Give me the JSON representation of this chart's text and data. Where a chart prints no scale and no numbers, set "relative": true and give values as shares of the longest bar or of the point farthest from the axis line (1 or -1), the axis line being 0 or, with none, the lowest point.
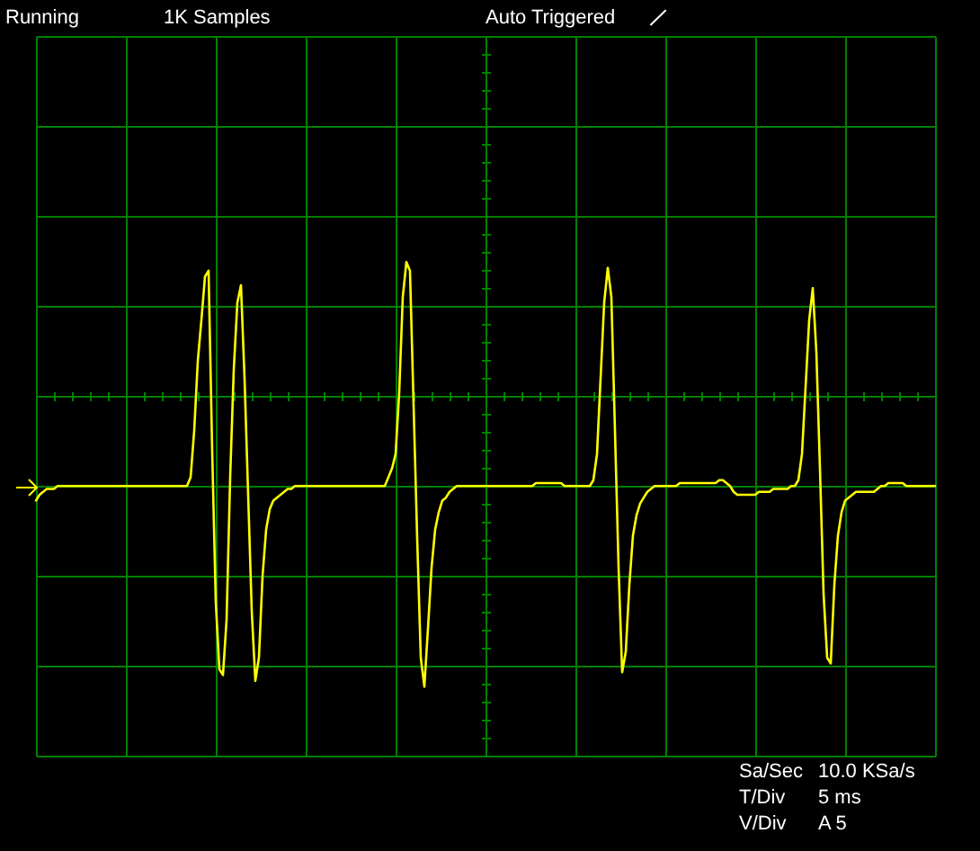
{
  "chart_data": {
    "type": "line",
    "relative": true,
    "grid": true,
    "color": "#ffff00",
    "annotations": [
      "Running",
      "1K Samples",
      "Auto Triggered",
      "Sa/Sec",
      "10.0 KSa/s",
      "T/Div",
      "5 ms",
      "V/Div",
      "A 5"
    ],
    "categories": [
      null,
      null,
      null,
      null,
      null,
      null,
      null,
      null,
      null,
      null,
      null,
      null,
      null,
      null,
      null,
      null,
      null,
      null,
      null,
      null,
      null,
      null,
      null,
      null,
      null,
      null,
      null,
      null,
      null,
      null,
      null,
      null,
      null,
      null,
      null,
      null,
      null,
      null,
      null,
      null,
      null,
      null,
      null,
      null,
      null,
      null,
      null,
      null,
      null,
      null,
      null,
      null,
      null,
      null,
      null,
      null,
      null,
      null,
      null,
      null,
      null,
      null,
      null,
      null,
      null,
      null,
      null,
      null,
      null,
      null,
      null,
      null,
      null,
      null,
      null,
      null,
      null,
      null,
      null,
      null,
      null,
      null,
      null,
      null,
      null,
      null,
      null,
      null,
      null,
      null,
      null,
      null,
      null,
      null,
      null,
      null,
      null,
      null,
      null,
      null,
      null,
      null,
      null,
      null,
      null,
      null,
      null,
      null,
      null,
      null,
      null,
      null,
      null,
      null,
      null,
      null,
      null,
      null,
      null,
      null,
      null,
      null,
      null,
      null,
      null,
      null,
      null,
      null,
      null,
      null,
      null,
      null,
      null,
      null,
      null,
      null,
      null,
      null,
      null,
      null,
      null,
      null,
      null,
      null,
      null,
      null,
      null,
      null,
      null,
      null,
      null,
      null,
      null,
      null,
      null,
      null,
      null,
      null,
      null,
      null,
      null,
      null,
      null,
      null,
      null,
      null,
      null,
      null,
      null,
      null,
      null,
      null,
      null,
      null,
      null,
      null,
      null,
      null,
      null,
      null,
      null,
      null,
      null,
      null,
      null,
      null,
      null,
      null,
      null,
      null,
      null,
      null,
      null,
      null,
      null,
      null,
      null,
      null,
      null,
      null,
      null,
      null,
      null,
      null,
      null,
      null,
      null,
      null,
      null,
      null,
      null,
      null,
      null,
      null,
      null,
      null,
      null,
      null,
      null,
      null,
      null,
      null,
      null,
      null,
      null,
      null,
      null,
      null,
      null,
      null,
      null,
      null,
      null,
      null,
      null,
      null,
      null,
      null,
      null,
      null,
      null,
      null,
      null,
      null,
      null,
      null,
      null,
      null,
      null,
      null,
      null
    ],
    "values": [
      -0.36,
      -0.34,
      -0.33,
      -0.32,
      -0.32,
      -0.32,
      -0.31,
      -0.31,
      -0.31,
      -0.31,
      -0.31,
      -0.31,
      -0.31,
      -0.31,
      -0.31,
      -0.31,
      -0.31,
      -0.31,
      -0.31,
      -0.31,
      -0.31,
      -0.31,
      -0.31,
      -0.31,
      -0.31,
      -0.31,
      -0.31,
      -0.31,
      -0.31,
      -0.31,
      -0.31,
      -0.31,
      -0.31,
      -0.31,
      -0.31,
      -0.31,
      -0.31,
      -0.31,
      -0.31,
      -0.31,
      -0.31,
      -0.31,
      -0.31,
      -0.28,
      -0.12,
      0.12,
      0.26,
      0.41,
      0.43,
      -0.19,
      -0.71,
      -0.94,
      -0.96,
      -0.77,
      -0.28,
      0.09,
      0.32,
      0.38,
      0.06,
      -0.34,
      -0.74,
      -0.98,
      -0.9,
      -0.62,
      -0.46,
      -0.39,
      -0.36,
      -0.35,
      -0.34,
      -0.33,
      -0.32,
      -0.32,
      -0.31,
      -0.31,
      -0.31,
      -0.31,
      -0.31,
      -0.31,
      -0.31,
      -0.31,
      -0.31,
      -0.31,
      -0.31,
      -0.31,
      -0.31,
      -0.31,
      -0.31,
      -0.31,
      -0.31,
      -0.31,
      -0.31,
      -0.31,
      -0.31,
      -0.31,
      -0.31,
      -0.31,
      -0.31,
      -0.31,
      -0.28,
      -0.25,
      -0.2,
      0.01,
      0.34,
      0.46,
      0.43,
      -0.03,
      -0.49,
      -0.9,
      -1.0,
      -0.8,
      -0.59,
      -0.46,
      -0.4,
      -0.36,
      -0.35,
      -0.33,
      -0.32,
      -0.31,
      -0.31,
      -0.31,
      -0.31,
      -0.31,
      -0.31,
      -0.31,
      -0.31,
      -0.31,
      -0.31,
      -0.31,
      -0.31,
      -0.31,
      -0.31,
      -0.31,
      -0.31,
      -0.31,
      -0.31,
      -0.31,
      -0.31,
      -0.31,
      -0.31,
      -0.3,
      -0.3,
      -0.3,
      -0.3,
      -0.3,
      -0.3,
      -0.3,
      -0.3,
      -0.31,
      -0.31,
      -0.31,
      -0.31,
      -0.31,
      -0.31,
      -0.31,
      -0.31,
      -0.29,
      -0.2,
      0.06,
      0.32,
      0.44,
      0.34,
      -0.12,
      -0.59,
      -0.95,
      -0.88,
      -0.65,
      -0.48,
      -0.41,
      -0.37,
      -0.35,
      -0.33,
      -0.32,
      -0.31,
      -0.31,
      -0.31,
      -0.31,
      -0.31,
      -0.31,
      -0.31,
      -0.3,
      -0.3,
      -0.3,
      -0.3,
      -0.3,
      -0.3,
      -0.3,
      -0.3,
      -0.3,
      -0.3,
      -0.3,
      -0.29,
      -0.29,
      -0.3,
      -0.31,
      -0.33,
      -0.34,
      -0.34,
      -0.34,
      -0.34,
      -0.34,
      -0.34,
      -0.33,
      -0.33,
      -0.33,
      -0.33,
      -0.32,
      -0.32,
      -0.32,
      -0.32,
      -0.32,
      -0.31,
      -0.31,
      -0.29,
      -0.2,
      0.03,
      0.26,
      0.37,
      0.15,
      -0.25,
      -0.68,
      -0.9,
      -0.92,
      -0.65,
      -0.48,
      -0.4,
      -0.36,
      -0.35,
      -0.34,
      -0.33,
      -0.33,
      -0.33,
      -0.33,
      -0.33,
      -0.33,
      -0.32,
      -0.31,
      -0.31,
      -0.3,
      -0.3,
      -0.3,
      -0.3,
      -0.3,
      -0.31,
      -0.31,
      -0.31,
      -0.31,
      -0.31,
      -0.31,
      -0.31,
      -0.31,
      -0.31
    ]
  }
}
